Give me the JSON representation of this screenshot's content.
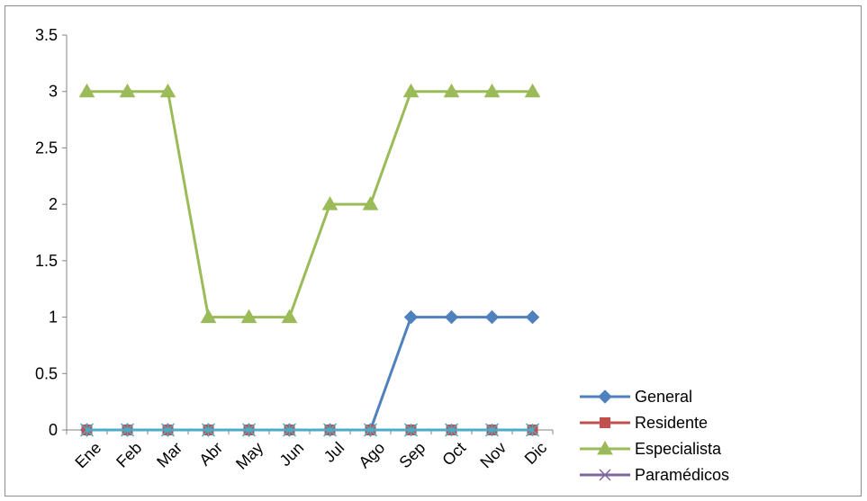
{
  "chart_data": {
    "type": "line",
    "title": "",
    "xlabel": "",
    "ylabel": "",
    "categories": [
      "Ene",
      "Feb",
      "Mar",
      "Abr",
      "May",
      "Jun",
      "Jul",
      "Ago",
      "Sep",
      "Oct",
      "Nov",
      "Dic"
    ],
    "ylim": [
      0,
      3.5
    ],
    "yticks": [
      "0",
      "0.5",
      "1",
      "1.5",
      "2",
      "2.5",
      "3",
      "3.5"
    ],
    "grid": false,
    "legend_position": "bottom-right",
    "series": [
      {
        "name": "General",
        "color": "#4F81BD",
        "marker": "diamond",
        "values": [
          0,
          0,
          0,
          0,
          0,
          0,
          0,
          0,
          1,
          1,
          1,
          1
        ]
      },
      {
        "name": "Residente",
        "color": "#C0504D",
        "marker": "square",
        "values": [
          0,
          0,
          0,
          0,
          0,
          0,
          0,
          0,
          0,
          0,
          0,
          0
        ]
      },
      {
        "name": "Especialista",
        "color": "#9BBB59",
        "marker": "triangle",
        "values": [
          3,
          3,
          3,
          1,
          1,
          1,
          2,
          2,
          3,
          3,
          3,
          3
        ]
      },
      {
        "name": "Paramédicos",
        "color": "#8064A2",
        "marker": "x",
        "values": [
          0,
          0,
          0,
          0,
          0,
          0,
          0,
          0,
          0,
          0,
          0,
          0
        ]
      },
      {
        "name": "",
        "color": "#4BACC6",
        "marker": "star",
        "values": [
          0,
          0,
          0,
          0,
          0,
          0,
          0,
          0,
          0,
          0,
          0,
          0
        ]
      }
    ]
  }
}
